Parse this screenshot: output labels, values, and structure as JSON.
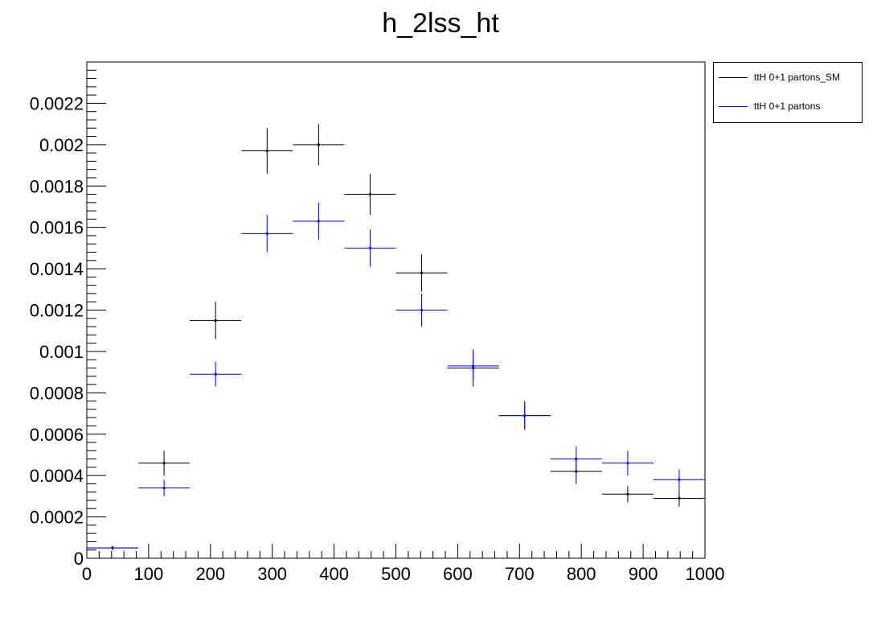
{
  "chart_data": {
    "type": "scatter",
    "title": "h_2lss_ht",
    "xlabel": "",
    "ylabel": "",
    "xlim": [
      0,
      1000
    ],
    "ylim": [
      0,
      0.0024
    ],
    "x_ticks": [
      0,
      100,
      200,
      300,
      400,
      500,
      600,
      700,
      800,
      900,
      1000
    ],
    "y_ticks": [
      0,
      0.0002,
      0.0004,
      0.0006,
      0.0008,
      0.001,
      0.0012,
      0.0014,
      0.0016,
      0.0018,
      0.002,
      0.0022
    ],
    "y_tick_labels": [
      "0",
      "0.0002",
      "0.0004",
      "0.0006",
      "0.0008",
      "0.001",
      "0.0012",
      "0.0014",
      "0.0016",
      "0.0018",
      "0.002",
      "0.0022"
    ],
    "bin_width": 83.33,
    "bin_centers": [
      41.67,
      125,
      208.33,
      291.67,
      375,
      458.33,
      541.67,
      625,
      708.33,
      791.67,
      875,
      958.33
    ],
    "legend_position": "right-top",
    "series": [
      {
        "name": "ttH 0+1 partons_SM",
        "color": "#000000",
        "values": [
          5e-05,
          0.00046,
          0.00115,
          0.00197,
          0.002,
          0.00176,
          0.00138,
          0.00092,
          0.00069,
          0.00042,
          0.00031,
          0.00029
        ],
        "errors": [
          1e-05,
          6e-05,
          9e-05,
          0.00011,
          0.0001,
          0.0001,
          9e-05,
          9e-05,
          7e-05,
          6e-05,
          4e-05,
          4e-05
        ]
      },
      {
        "name": "ttH 0+1 partons",
        "color": "#0000ff",
        "values": [
          5e-05,
          0.00034,
          0.00089,
          0.00157,
          0.00163,
          0.0015,
          0.0012,
          0.00093,
          0.00069,
          0.00048,
          0.00046,
          0.00038
        ],
        "errors": [
          1e-05,
          4e-05,
          6e-05,
          9e-05,
          9e-05,
          9e-05,
          8e-05,
          7e-05,
          6e-05,
          6e-05,
          6e-05,
          5e-05
        ]
      }
    ]
  }
}
